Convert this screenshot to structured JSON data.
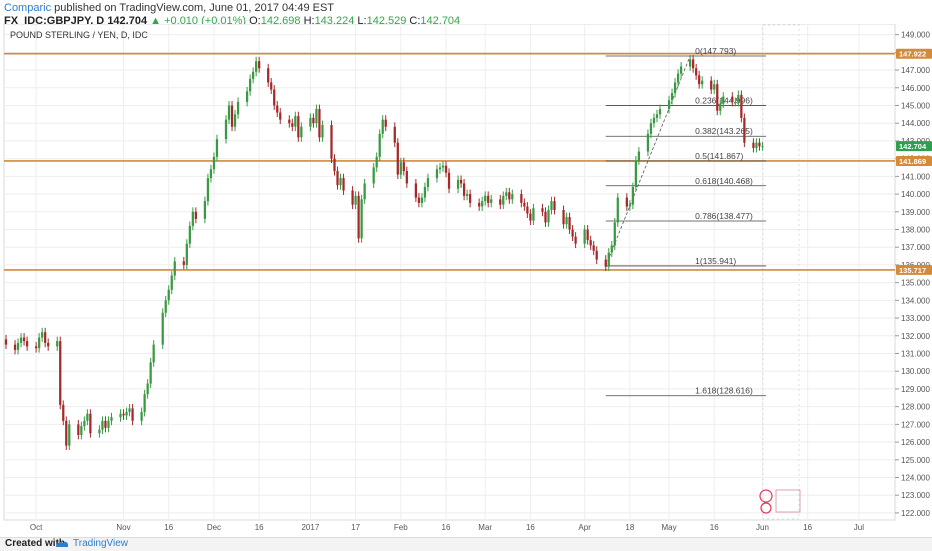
{
  "header": {
    "author": "Comparic",
    "published_text": "published on TradingView.com, June 01, 2017 04:49 EST",
    "symbol": "FX_IDC:GBPJPY, D",
    "last": "142.704",
    "arrow": "▲",
    "change": "+0.010 (+0.01%)",
    "o_label": "O:",
    "o_value": "142.698",
    "h_label": "H:",
    "h_value": "143.224",
    "l_label": "L:",
    "l_value": "142.529",
    "c_label": "C:",
    "c_value": "142.704"
  },
  "footer": {
    "created_with": "Created with",
    "brand": "TradingView"
  },
  "colors": {
    "up": "#3a9a43",
    "down": "#a42a2a",
    "level": "#d38a3a",
    "grid": "#eeeeee",
    "axis_text": "#555555",
    "price_tag": "#2e9e4f"
  },
  "chart_data": {
    "type": "candlestick",
    "title": "POUND STERLING / YEN, D, IDC",
    "ylim": [
      121.6,
      149.6
    ],
    "y_ticks": [
      "149.000",
      "148.000",
      "147.000",
      "146.000",
      "145.000",
      "144.000",
      "143.000",
      "142.000",
      "141.000",
      "140.000",
      "139.000",
      "138.000",
      "137.000",
      "136.000",
      "135.000",
      "134.000",
      "133.000",
      "132.000",
      "131.000",
      "130.000",
      "129.000",
      "128.000",
      "127.000",
      "126.000",
      "125.000",
      "124.000",
      "123.000",
      "122.000"
    ],
    "x_ticks": [
      {
        "label": "Oct",
        "date": "2016-10-03"
      },
      {
        "label": "Nov",
        "date": "2016-11-01"
      },
      {
        "label": "16",
        "date": "2016-11-16"
      },
      {
        "label": "Dec",
        "date": "2016-12-01"
      },
      {
        "label": "16",
        "date": "2016-12-16"
      },
      {
        "label": "2017",
        "date": "2017-01-02"
      },
      {
        "label": "17",
        "date": "2017-01-17"
      },
      {
        "label": "Feb",
        "date": "2017-02-01"
      },
      {
        "label": "16",
        "date": "2017-02-16"
      },
      {
        "label": "Mar",
        "date": "2017-03-01"
      },
      {
        "label": "16",
        "date": "2017-03-16"
      },
      {
        "label": "Apr",
        "date": "2017-04-03"
      },
      {
        "label": "18",
        "date": "2017-04-18"
      },
      {
        "label": "May",
        "date": "2017-05-01"
      },
      {
        "label": "16",
        "date": "2017-05-16"
      },
      {
        "label": "Jun",
        "date": "2017-06-01"
      },
      {
        "label": "16",
        "date": "2017-06-16"
      },
      {
        "label": "Jul",
        "date": "2017-07-03"
      }
    ],
    "x_range": [
      "2016-09-23",
      "2017-07-10"
    ],
    "closes": [
      {
        "d": "2016-09-23",
        "c": 131.5
      },
      {
        "d": "2016-09-26",
        "c": 131.2
      },
      {
        "d": "2016-09-27",
        "c": 131.6
      },
      {
        "d": "2016-09-28",
        "c": 131.9
      },
      {
        "d": "2016-09-29",
        "c": 131.7
      },
      {
        "d": "2016-09-30",
        "c": 131.4
      },
      {
        "d": "2016-10-03",
        "c": 131.3
      },
      {
        "d": "2016-10-04",
        "c": 131.9
      },
      {
        "d": "2016-10-05",
        "c": 132.2
      },
      {
        "d": "2016-10-06",
        "c": 131.6
      },
      {
        "d": "2016-10-07",
        "c": 131.4
      },
      {
        "d": "2016-10-10",
        "c": 131.7
      },
      {
        "d": "2016-10-11",
        "c": 128.1
      },
      {
        "d": "2016-10-12",
        "c": 127.2
      },
      {
        "d": "2016-10-13",
        "c": 125.8
      },
      {
        "d": "2016-10-14",
        "c": 127.0
      },
      {
        "d": "2016-10-17",
        "c": 126.4
      },
      {
        "d": "2016-10-18",
        "c": 126.9
      },
      {
        "d": "2016-10-19",
        "c": 127.2
      },
      {
        "d": "2016-10-20",
        "c": 127.6
      },
      {
        "d": "2016-10-21",
        "c": 126.5
      },
      {
        "d": "2016-10-24",
        "c": 126.7
      },
      {
        "d": "2016-10-25",
        "c": 127.2
      },
      {
        "d": "2016-10-26",
        "c": 126.8
      },
      {
        "d": "2016-10-27",
        "c": 127.2
      },
      {
        "d": "2016-10-28",
        "c": 127.4
      },
      {
        "d": "2016-10-31",
        "c": 127.6
      },
      {
        "d": "2016-11-01",
        "c": 127.5
      },
      {
        "d": "2016-11-02",
        "c": 127.7
      },
      {
        "d": "2016-11-03",
        "c": 127.9
      },
      {
        "d": "2016-11-04",
        "c": 127.2
      },
      {
        "d": "2016-11-07",
        "c": 127.7
      },
      {
        "d": "2016-11-08",
        "c": 128.7
      },
      {
        "d": "2016-11-09",
        "c": 129.3
      },
      {
        "d": "2016-11-10",
        "c": 130.5
      },
      {
        "d": "2016-11-11",
        "c": 131.5
      },
      {
        "d": "2016-11-14",
        "c": 133.3
      },
      {
        "d": "2016-11-15",
        "c": 134.0
      },
      {
        "d": "2016-11-16",
        "c": 134.6
      },
      {
        "d": "2016-11-17",
        "c": 135.4
      },
      {
        "d": "2016-11-18",
        "c": 136.2
      },
      {
        "d": "2016-11-21",
        "c": 136.0
      },
      {
        "d": "2016-11-22",
        "c": 137.2
      },
      {
        "d": "2016-11-23",
        "c": 138.2
      },
      {
        "d": "2016-11-24",
        "c": 139.0
      },
      {
        "d": "2016-11-25",
        "c": 138.6
      },
      {
        "d": "2016-11-28",
        "c": 139.6
      },
      {
        "d": "2016-11-29",
        "c": 140.9
      },
      {
        "d": "2016-11-30",
        "c": 141.4
      },
      {
        "d": "2016-12-01",
        "c": 142.1
      },
      {
        "d": "2016-12-02",
        "c": 143.1
      },
      {
        "d": "2016-12-05",
        "c": 144.2
      },
      {
        "d": "2016-12-06",
        "c": 145.0
      },
      {
        "d": "2016-12-07",
        "c": 143.8
      },
      {
        "d": "2016-12-08",
        "c": 144.5
      },
      {
        "d": "2016-12-09",
        "c": 145.2
      },
      {
        "d": "2016-12-12",
        "c": 145.8
      },
      {
        "d": "2016-12-13",
        "c": 146.5
      },
      {
        "d": "2016-12-14",
        "c": 146.9
      },
      {
        "d": "2016-12-15",
        "c": 147.5
      },
      {
        "d": "2016-12-16",
        "c": 147.1
      },
      {
        "d": "2016-12-19",
        "c": 146.3
      },
      {
        "d": "2016-12-20",
        "c": 145.9
      },
      {
        "d": "2016-12-21",
        "c": 145.0
      },
      {
        "d": "2016-12-22",
        "c": 144.6
      },
      {
        "d": "2016-12-23",
        "c": 144.2
      },
      {
        "d": "2016-12-26",
        "c": 144.0
      },
      {
        "d": "2016-12-27",
        "c": 143.8
      },
      {
        "d": "2016-12-28",
        "c": 144.4
      },
      {
        "d": "2016-12-29",
        "c": 143.2
      },
      {
        "d": "2016-12-30",
        "c": 143.8
      },
      {
        "d": "2017-01-02",
        "c": 144.3
      },
      {
        "d": "2017-01-03",
        "c": 144.0
      },
      {
        "d": "2017-01-04",
        "c": 144.8
      },
      {
        "d": "2017-01-05",
        "c": 143.2
      },
      {
        "d": "2017-01-06",
        "c": 143.9
      },
      {
        "d": "2017-01-09",
        "c": 142.0
      },
      {
        "d": "2017-01-10",
        "c": 141.3
      },
      {
        "d": "2017-01-11",
        "c": 140.5
      },
      {
        "d": "2017-01-12",
        "c": 140.9
      },
      {
        "d": "2017-01-13",
        "c": 140.2
      },
      {
        "d": "2017-01-16",
        "c": 139.4
      },
      {
        "d": "2017-01-17",
        "c": 139.9
      },
      {
        "d": "2017-01-18",
        "c": 137.5
      },
      {
        "d": "2017-01-19",
        "c": 139.7
      },
      {
        "d": "2017-01-20",
        "c": 140.6
      },
      {
        "d": "2017-01-23",
        "c": 141.5
      },
      {
        "d": "2017-01-24",
        "c": 142.1
      },
      {
        "d": "2017-01-25",
        "c": 143.4
      },
      {
        "d": "2017-01-26",
        "c": 144.2
      },
      {
        "d": "2017-01-27",
        "c": 143.8
      },
      {
        "d": "2017-01-30",
        "c": 142.9
      },
      {
        "d": "2017-01-31",
        "c": 141.1
      },
      {
        "d": "2017-02-01",
        "c": 141.8
      },
      {
        "d": "2017-02-02",
        "c": 141.3
      },
      {
        "d": "2017-02-03",
        "c": 140.6
      },
      {
        "d": "2017-02-06",
        "c": 139.8
      },
      {
        "d": "2017-02-07",
        "c": 139.5
      },
      {
        "d": "2017-02-08",
        "c": 139.8
      },
      {
        "d": "2017-02-09",
        "c": 140.4
      },
      {
        "d": "2017-02-10",
        "c": 140.9
      },
      {
        "d": "2017-02-13",
        "c": 141.4
      },
      {
        "d": "2017-02-14",
        "c": 141.5
      },
      {
        "d": "2017-02-15",
        "c": 141.6
      },
      {
        "d": "2017-02-16",
        "c": 141.2
      },
      {
        "d": "2017-02-17",
        "c": 140.3
      },
      {
        "d": "2017-02-20",
        "c": 140.8
      },
      {
        "d": "2017-02-21",
        "c": 140.6
      },
      {
        "d": "2017-02-22",
        "c": 139.9
      },
      {
        "d": "2017-02-23",
        "c": 140.0
      },
      {
        "d": "2017-02-24",
        "c": 139.5
      },
      {
        "d": "2017-02-27",
        "c": 139.3
      },
      {
        "d": "2017-02-28",
        "c": 139.6
      },
      {
        "d": "2017-03-01",
        "c": 139.9
      },
      {
        "d": "2017-03-02",
        "c": 139.5
      },
      {
        "d": "2017-03-03",
        "c": 139.7
      },
      {
        "d": "2017-03-06",
        "c": 139.4
      },
      {
        "d": "2017-03-07",
        "c": 139.9
      },
      {
        "d": "2017-03-08",
        "c": 140.1
      },
      {
        "d": "2017-03-09",
        "c": 139.7
      },
      {
        "d": "2017-03-10",
        "c": 140.0
      },
      {
        "d": "2017-03-13",
        "c": 139.5
      },
      {
        "d": "2017-03-14",
        "c": 139.3
      },
      {
        "d": "2017-03-15",
        "c": 138.9
      },
      {
        "d": "2017-03-16",
        "c": 138.5
      },
      {
        "d": "2017-03-17",
        "c": 139.2
      },
      {
        "d": "2017-03-20",
        "c": 139.0
      },
      {
        "d": "2017-03-21",
        "c": 138.4
      },
      {
        "d": "2017-03-22",
        "c": 139.1
      },
      {
        "d": "2017-03-23",
        "c": 139.6
      },
      {
        "d": "2017-03-24",
        "c": 139.1
      },
      {
        "d": "2017-03-27",
        "c": 138.3
      },
      {
        "d": "2017-03-28",
        "c": 138.7
      },
      {
        "d": "2017-03-29",
        "c": 138.0
      },
      {
        "d": "2017-03-30",
        "c": 137.6
      },
      {
        "d": "2017-03-31",
        "c": 137.2
      },
      {
        "d": "2017-04-03",
        "c": 138.0
      },
      {
        "d": "2017-04-04",
        "c": 137.4
      },
      {
        "d": "2017-04-05",
        "c": 137.1
      },
      {
        "d": "2017-04-06",
        "c": 136.8
      },
      {
        "d": "2017-04-07",
        "c": 136.3
      },
      {
        "d": "2017-04-10",
        "c": 135.9
      },
      {
        "d": "2017-04-11",
        "c": 136.7
      },
      {
        "d": "2017-04-12",
        "c": 137.1
      },
      {
        "d": "2017-04-13",
        "c": 138.4
      },
      {
        "d": "2017-04-14",
        "c": 139.8
      },
      {
        "d": "2017-04-17",
        "c": 139.3
      },
      {
        "d": "2017-04-18",
        "c": 139.4
      },
      {
        "d": "2017-04-19",
        "c": 140.4
      },
      {
        "d": "2017-04-20",
        "c": 141.9
      },
      {
        "d": "2017-04-21",
        "c": 142.4
      },
      {
        "d": "2017-04-24",
        "c": 143.4
      },
      {
        "d": "2017-04-25",
        "c": 144.0
      },
      {
        "d": "2017-04-26",
        "c": 144.3
      },
      {
        "d": "2017-04-27",
        "c": 144.5
      },
      {
        "d": "2017-04-28",
        "c": 144.8
      },
      {
        "d": "2017-05-01",
        "c": 145.3
      },
      {
        "d": "2017-05-02",
        "c": 145.7
      },
      {
        "d": "2017-05-03",
        "c": 146.3
      },
      {
        "d": "2017-05-04",
        "c": 146.8
      },
      {
        "d": "2017-05-05",
        "c": 147.2
      },
      {
        "d": "2017-05-08",
        "c": 147.6
      },
      {
        "d": "2017-05-09",
        "c": 147.1
      },
      {
        "d": "2017-05-10",
        "c": 146.7
      },
      {
        "d": "2017-05-11",
        "c": 146.2
      },
      {
        "d": "2017-05-12",
        "c": 146.4
      },
      {
        "d": "2017-05-15",
        "c": 145.9
      },
      {
        "d": "2017-05-16",
        "c": 146.2
      },
      {
        "d": "2017-05-17",
        "c": 144.7
      },
      {
        "d": "2017-05-18",
        "c": 145.1
      },
      {
        "d": "2017-05-19",
        "c": 145.5
      },
      {
        "d": "2017-05-22",
        "c": 145.2
      },
      {
        "d": "2017-05-23",
        "c": 145.2
      },
      {
        "d": "2017-05-24",
        "c": 145.6
      },
      {
        "d": "2017-05-25",
        "c": 144.3
      },
      {
        "d": "2017-05-26",
        "c": 142.9
      },
      {
        "d": "2017-05-29",
        "c": 142.6
      },
      {
        "d": "2017-05-30",
        "c": 142.9
      },
      {
        "d": "2017-05-31",
        "c": 142.7
      },
      {
        "d": "2017-06-01",
        "c": 142.704
      }
    ],
    "horizontal_levels": [
      {
        "value": 147.922,
        "label": "147.922"
      },
      {
        "value": 141.869,
        "label": "141.869"
      },
      {
        "value": 135.717,
        "label": "135.717"
      }
    ],
    "fibonacci": {
      "start_date": "2017-04-10",
      "end_date": "2017-05-08",
      "label_start_date": "2017-05-09",
      "levels": [
        {
          "ratio": "0",
          "value": 147.793,
          "label": "0(147.793)"
        },
        {
          "ratio": "0.236",
          "value": 144.996,
          "label": "0.236(144.996)"
        },
        {
          "ratio": "0.382",
          "value": 143.265,
          "label": "0.382(143.265)"
        },
        {
          "ratio": "0.5",
          "value": 141.867,
          "label": "0.5(141.867)"
        },
        {
          "ratio": "0.618",
          "value": 140.468,
          "label": "0.618(140.468)"
        },
        {
          "ratio": "0.786",
          "value": 138.477,
          "label": "0.786(138.477)"
        },
        {
          "ratio": "1",
          "value": 135.941,
          "label": "1(135.941)"
        },
        {
          "ratio": "1.618",
          "value": 128.616,
          "label": "1.618(128.616)"
        }
      ]
    },
    "trend_line": {
      "from": {
        "d": "2017-04-10",
        "v": 135.941
      },
      "to": {
        "d": "2017-05-08",
        "v": 147.793
      }
    },
    "current_price": {
      "value": 142.704,
      "label": "142.704"
    }
  }
}
